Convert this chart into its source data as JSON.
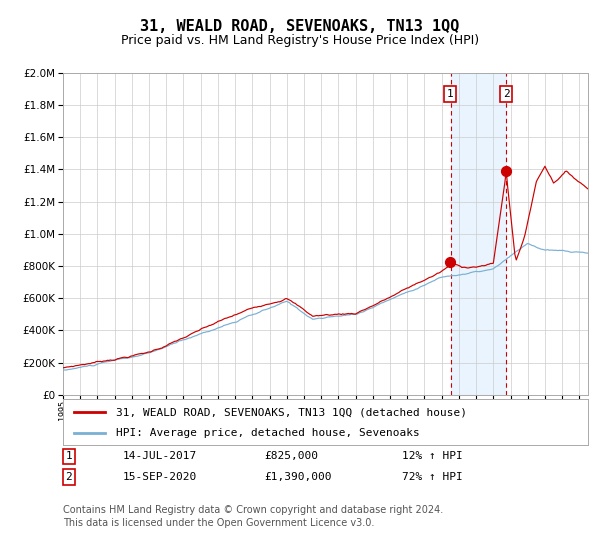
{
  "title": "31, WEALD ROAD, SEVENOAKS, TN13 1QQ",
  "subtitle": "Price paid vs. HM Land Registry's House Price Index (HPI)",
  "legend_line1": "31, WEALD ROAD, SEVENOAKS, TN13 1QQ (detached house)",
  "legend_line2": "HPI: Average price, detached house, Sevenoaks",
  "annotation1_date": "14-JUL-2017",
  "annotation1_price": "£825,000",
  "annotation1_hpi": "12% ↑ HPI",
  "annotation2_date": "15-SEP-2020",
  "annotation2_price": "£1,390,000",
  "annotation2_hpi": "72% ↑ HPI",
  "footnote": "Contains HM Land Registry data © Crown copyright and database right 2024.\nThis data is licensed under the Open Government Licence v3.0.",
  "year_start": 1995,
  "year_end": 2025,
  "sale1_year": 2017.54,
  "sale1_value": 825000,
  "sale2_year": 2020.71,
  "sale2_value": 1390000,
  "ylim_max": 2000000,
  "ylim_min": 0,
  "line_color_red": "#cc0000",
  "line_color_blue": "#7ab0d4",
  "dot_color": "#cc0000",
  "vline_color": "#cc0000",
  "shade_color": "#ddeeff",
  "grid_color": "#cccccc",
  "background_color": "#ffffff",
  "title_fontsize": 11,
  "subtitle_fontsize": 9,
  "tick_fontsize": 7,
  "legend_fontsize": 8,
  "footnote_fontsize": 7,
  "yticks": [
    0,
    200000,
    400000,
    600000,
    800000,
    1000000,
    1200000,
    1400000,
    1600000,
    1800000,
    2000000
  ]
}
